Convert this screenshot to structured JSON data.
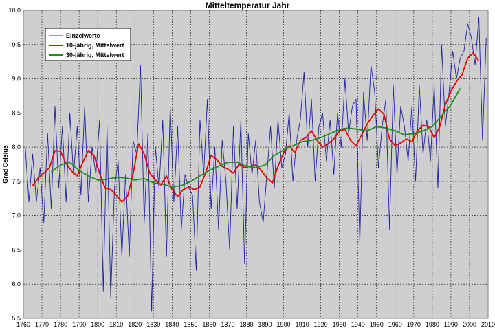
{
  "chart_data": {
    "type": "line",
    "title": "Mitteltemperatur Jahr",
    "xlabel": "",
    "ylabel": "Grad Celsius",
    "xlim": [
      1760,
      2010
    ],
    "ylim": [
      5.5,
      10.0
    ],
    "xticks": [
      "1760",
      "1770",
      "1780",
      "1790",
      "1800",
      "1810",
      "1820",
      "1830",
      "1840",
      "1850",
      "1860",
      "1870",
      "1880",
      "1890",
      "1900",
      "1910",
      "1920",
      "1930",
      "1940",
      "1950",
      "1960",
      "1970",
      "1980",
      "1990",
      "2000",
      "2010"
    ],
    "yticks": [
      "5,5",
      "6,0",
      "6,5",
      "7,0",
      "7,5",
      "8,0",
      "8,5",
      "9,0",
      "9,5",
      "10,0"
    ],
    "grid": true,
    "legend_position": "top-left",
    "series": [
      {
        "name": "Einzelwerte",
        "color": "#1f1f9e",
        "x": [
          1761,
          1763,
          1765,
          1767,
          1769,
          1771,
          1773,
          1775,
          1777,
          1779,
          1781,
          1783,
          1785,
          1787,
          1789,
          1791,
          1793,
          1795,
          1797,
          1799,
          1801,
          1803,
          1805,
          1807,
          1809,
          1811,
          1813,
          1815,
          1817,
          1819,
          1821,
          1823,
          1825,
          1827,
          1829,
          1831,
          1833,
          1835,
          1837,
          1839,
          1841,
          1843,
          1845,
          1847,
          1849,
          1851,
          1853,
          1855,
          1857,
          1859,
          1861,
          1863,
          1865,
          1867,
          1869,
          1871,
          1873,
          1875,
          1877,
          1879,
          1881,
          1883,
          1885,
          1887,
          1889,
          1891,
          1893,
          1895,
          1897,
          1899,
          1901,
          1903,
          1905,
          1907,
          1909,
          1911,
          1913,
          1915,
          1917,
          1919,
          1921,
          1923,
          1925,
          1927,
          1929,
          1931,
          1933,
          1935,
          1937,
          1939,
          1941,
          1943,
          1945,
          1947,
          1949,
          1951,
          1953,
          1955,
          1957,
          1959,
          1961,
          1963,
          1965,
          1967,
          1969,
          1971,
          1973,
          1975,
          1977,
          1979,
          1981,
          1983,
          1985,
          1987,
          1989,
          1991,
          1993,
          1995,
          1997,
          1999,
          2001,
          2003,
          2005,
          2007,
          2009
        ],
        "values": [
          8.0,
          7.2,
          7.9,
          7.2,
          7.7,
          6.9,
          8.2,
          7.1,
          8.6,
          7.4,
          8.3,
          7.2,
          8.5,
          7.6,
          8.3,
          7.3,
          8.6,
          7.2,
          8.0,
          7.6,
          8.4,
          5.9,
          8.3,
          5.8,
          7.4,
          7.8,
          6.4,
          7.6,
          6.4,
          8.1,
          7.9,
          9.2,
          6.9,
          8.2,
          5.6,
          8.0,
          7.4,
          8.4,
          6.4,
          8.6,
          7.2,
          8.3,
          6.8,
          7.6,
          7.4,
          7.3,
          6.2,
          8.4,
          7.6,
          8.7,
          7.1,
          8.0,
          6.8,
          8.1,
          7.5,
          6.5,
          8.3,
          7.1,
          8.4,
          6.3,
          8.2,
          7.6,
          8.1,
          7.2,
          6.9,
          7.6,
          8.3,
          7.4,
          8.4,
          7.7,
          7.9,
          8.5,
          7.5,
          8.1,
          8.4,
          9.1,
          8.0,
          8.7,
          7.5,
          8.3,
          8.5,
          7.8,
          8.4,
          7.6,
          8.5,
          8.0,
          9.0,
          8.2,
          8.6,
          8.7,
          6.6,
          8.8,
          8.1,
          9.2,
          8.8,
          7.7,
          8.3,
          8.7,
          6.8,
          8.9,
          7.6,
          8.6,
          8.3,
          7.8,
          8.6,
          7.5,
          8.9,
          7.9,
          8.4,
          7.8,
          8.9,
          7.4,
          9.5,
          8.3,
          8.8,
          9.4,
          9.0,
          9.3,
          9.4,
          9.8,
          9.6,
          9.2,
          9.9,
          8.1,
          9.6
        ]
      },
      {
        "name": "10-jährig, Mittelwert",
        "color": "#e60000",
        "x": [
          1765,
          1768,
          1771,
          1774,
          1777,
          1780,
          1783,
          1786,
          1789,
          1792,
          1795,
          1798,
          1801,
          1804,
          1807,
          1810,
          1813,
          1816,
          1819,
          1822,
          1825,
          1828,
          1831,
          1834,
          1837,
          1840,
          1843,
          1846,
          1849,
          1852,
          1855,
          1858,
          1861,
          1864,
          1867,
          1870,
          1873,
          1876,
          1879,
          1882,
          1885,
          1888,
          1891,
          1894,
          1897,
          1900,
          1903,
          1906,
          1909,
          1912,
          1915,
          1918,
          1921,
          1924,
          1927,
          1930,
          1933,
          1936,
          1939,
          1942,
          1945,
          1948,
          1951,
          1954,
          1957,
          1960,
          1963,
          1966,
          1969,
          1972,
          1975,
          1978,
          1981,
          1984,
          1987,
          1990,
          1993,
          1996,
          1999,
          2002,
          2005
        ],
        "values": [
          7.44,
          7.55,
          7.62,
          7.7,
          7.95,
          7.94,
          7.76,
          7.65,
          7.58,
          7.78,
          7.95,
          7.88,
          7.62,
          7.4,
          7.38,
          7.3,
          7.2,
          7.28,
          7.6,
          8.05,
          7.9,
          7.62,
          7.52,
          7.45,
          7.58,
          7.38,
          7.28,
          7.38,
          7.42,
          7.38,
          7.42,
          7.62,
          7.88,
          7.82,
          7.72,
          7.68,
          7.62,
          7.75,
          7.7,
          7.72,
          7.74,
          7.66,
          7.55,
          7.48,
          7.72,
          7.92,
          8.02,
          7.92,
          8.1,
          8.14,
          8.24,
          8.1,
          8.0,
          8.05,
          8.12,
          8.24,
          8.26,
          8.1,
          8.02,
          8.18,
          8.34,
          8.46,
          8.56,
          8.48,
          8.12,
          8.02,
          8.06,
          8.12,
          8.08,
          8.24,
          8.32,
          8.3,
          8.14,
          8.3,
          8.62,
          8.82,
          8.96,
          9.06,
          9.3,
          9.38,
          9.26
        ]
      },
      {
        "name": "30-jährig, Mittelwert",
        "color": "#1a8c1a",
        "x": [
          1775,
          1780,
          1785,
          1790,
          1795,
          1800,
          1805,
          1810,
          1815,
          1820,
          1825,
          1830,
          1835,
          1840,
          1845,
          1850,
          1855,
          1860,
          1865,
          1870,
          1875,
          1880,
          1885,
          1890,
          1895,
          1900,
          1905,
          1910,
          1915,
          1920,
          1925,
          1930,
          1935,
          1940,
          1945,
          1950,
          1955,
          1960,
          1965,
          1970,
          1975,
          1980,
          1985,
          1990,
          1995
        ],
        "values": [
          7.64,
          7.74,
          7.78,
          7.66,
          7.58,
          7.52,
          7.53,
          7.56,
          7.55,
          7.52,
          7.54,
          7.48,
          7.46,
          7.42,
          7.44,
          7.5,
          7.58,
          7.66,
          7.72,
          7.78,
          7.78,
          7.72,
          7.7,
          7.74,
          7.88,
          7.96,
          8.02,
          8.08,
          8.1,
          8.14,
          8.2,
          8.26,
          8.28,
          8.26,
          8.24,
          8.3,
          8.28,
          8.24,
          8.18,
          8.2,
          8.24,
          8.3,
          8.46,
          8.62,
          8.86
        ]
      }
    ]
  }
}
